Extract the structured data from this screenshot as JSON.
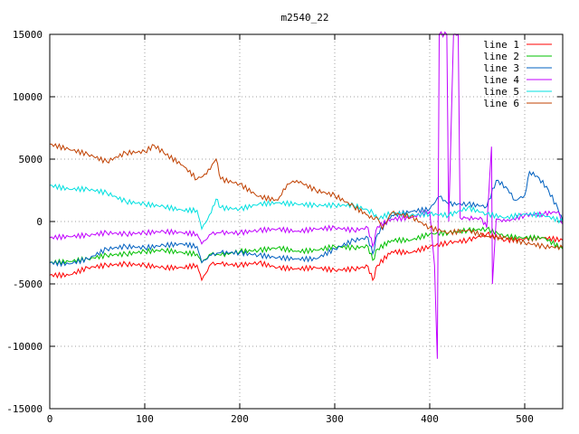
{
  "chart_data": {
    "type": "line",
    "title": "m2540_22",
    "xlabel": "",
    "ylabel": "",
    "xlim": [
      0,
      540
    ],
    "ylim": [
      -15000,
      15000
    ],
    "xticks": [
      0,
      100,
      200,
      300,
      400,
      500
    ],
    "yticks": [
      -15000,
      -10000,
      -5000,
      0,
      5000,
      10000,
      15000
    ],
    "grid": true,
    "legend_position": "top-right",
    "series": [
      {
        "name": "line 1",
        "color": "#ff0000",
        "points": [
          [
            0,
            -4300
          ],
          [
            20,
            -4300
          ],
          [
            40,
            -3700
          ],
          [
            60,
            -3500
          ],
          [
            80,
            -3400
          ],
          [
            100,
            -3500
          ],
          [
            120,
            -3700
          ],
          [
            140,
            -3700
          ],
          [
            155,
            -3500
          ],
          [
            160,
            -4700
          ],
          [
            170,
            -3400
          ],
          [
            180,
            -3400
          ],
          [
            200,
            -3500
          ],
          [
            220,
            -3300
          ],
          [
            240,
            -3700
          ],
          [
            260,
            -3800
          ],
          [
            280,
            -3700
          ],
          [
            300,
            -3900
          ],
          [
            320,
            -3800
          ],
          [
            335,
            -3600
          ],
          [
            340,
            -4700
          ],
          [
            345,
            -3500
          ],
          [
            360,
            -2400
          ],
          [
            380,
            -2500
          ],
          [
            400,
            -2000
          ],
          [
            420,
            -1700
          ],
          [
            440,
            -1500
          ],
          [
            460,
            -1000
          ],
          [
            480,
            -1500
          ],
          [
            500,
            -1400
          ],
          [
            520,
            -1300
          ],
          [
            540,
            -1500
          ]
        ]
      },
      {
        "name": "line 2",
        "color": "#00c000",
        "points": [
          [
            0,
            -3300
          ],
          [
            20,
            -3200
          ],
          [
            40,
            -3000
          ],
          [
            60,
            -2700
          ],
          [
            80,
            -2600
          ],
          [
            100,
            -2400
          ],
          [
            120,
            -2300
          ],
          [
            140,
            -2500
          ],
          [
            155,
            -2600
          ],
          [
            160,
            -3300
          ],
          [
            170,
            -2600
          ],
          [
            180,
            -2700
          ],
          [
            200,
            -2400
          ],
          [
            220,
            -2300
          ],
          [
            240,
            -2100
          ],
          [
            260,
            -2400
          ],
          [
            280,
            -2300
          ],
          [
            300,
            -2000
          ],
          [
            320,
            -2100
          ],
          [
            335,
            -2000
          ],
          [
            340,
            -3100
          ],
          [
            345,
            -2200
          ],
          [
            360,
            -1500
          ],
          [
            380,
            -1500
          ],
          [
            400,
            -1000
          ],
          [
            420,
            -900
          ],
          [
            440,
            -700
          ],
          [
            460,
            -600
          ],
          [
            480,
            -1200
          ],
          [
            500,
            -1300
          ],
          [
            520,
            -1300
          ],
          [
            540,
            -2200
          ]
        ]
      },
      {
        "name": "line 3",
        "color": "#0060c0",
        "points": [
          [
            0,
            -3300
          ],
          [
            20,
            -3400
          ],
          [
            40,
            -3000
          ],
          [
            60,
            -2200
          ],
          [
            80,
            -2000
          ],
          [
            100,
            -2100
          ],
          [
            120,
            -1900
          ],
          [
            140,
            -1800
          ],
          [
            155,
            -2000
          ],
          [
            160,
            -3300
          ],
          [
            170,
            -2700
          ],
          [
            180,
            -2500
          ],
          [
            200,
            -2500
          ],
          [
            220,
            -2700
          ],
          [
            240,
            -2900
          ],
          [
            260,
            -3000
          ],
          [
            280,
            -3000
          ],
          [
            300,
            -2200
          ],
          [
            320,
            -1500
          ],
          [
            335,
            -1300
          ],
          [
            340,
            -2600
          ],
          [
            345,
            -1000
          ],
          [
            360,
            500
          ],
          [
            380,
            800
          ],
          [
            400,
            1000
          ],
          [
            410,
            2000
          ],
          [
            420,
            1400
          ],
          [
            440,
            1400
          ],
          [
            460,
            1200
          ],
          [
            470,
            3300
          ],
          [
            480,
            2800
          ],
          [
            490,
            1700
          ],
          [
            500,
            2100
          ],
          [
            505,
            4000
          ],
          [
            515,
            3500
          ],
          [
            525,
            2500
          ],
          [
            535,
            1000
          ],
          [
            540,
            0
          ]
        ]
      },
      {
        "name": "line 4",
        "color": "#c000ff",
        "points": [
          [
            0,
            -1300
          ],
          [
            20,
            -1200
          ],
          [
            40,
            -1100
          ],
          [
            60,
            -900
          ],
          [
            80,
            -1000
          ],
          [
            100,
            -900
          ],
          [
            120,
            -800
          ],
          [
            140,
            -900
          ],
          [
            155,
            -1000
          ],
          [
            160,
            -1800
          ],
          [
            170,
            -1000
          ],
          [
            180,
            -900
          ],
          [
            200,
            -900
          ],
          [
            220,
            -700
          ],
          [
            240,
            -600
          ],
          [
            260,
            -800
          ],
          [
            280,
            -600
          ],
          [
            300,
            -500
          ],
          [
            320,
            -700
          ],
          [
            335,
            -500
          ],
          [
            340,
            -2000
          ],
          [
            345,
            -400
          ],
          [
            360,
            200
          ],
          [
            380,
            300
          ],
          [
            400,
            800
          ],
          [
            405,
            -3500
          ],
          [
            408,
            -11000
          ],
          [
            410,
            15000
          ],
          [
            418,
            15000
          ],
          [
            420,
            0
          ],
          [
            425,
            15000
          ],
          [
            430,
            15000
          ],
          [
            432,
            300
          ],
          [
            440,
            300
          ],
          [
            455,
            200
          ],
          [
            460,
            -500
          ],
          [
            465,
            6000
          ],
          [
            466,
            -5000
          ],
          [
            470,
            200
          ],
          [
            480,
            0
          ],
          [
            500,
            500
          ],
          [
            520,
            600
          ],
          [
            535,
            800
          ],
          [
            540,
            -200
          ]
        ]
      },
      {
        "name": "line 5",
        "color": "#00e0e0",
        "points": [
          [
            0,
            2900
          ],
          [
            20,
            2600
          ],
          [
            40,
            2600
          ],
          [
            60,
            2300
          ],
          [
            80,
            1600
          ],
          [
            100,
            1400
          ],
          [
            120,
            1200
          ],
          [
            140,
            900
          ],
          [
            155,
            900
          ],
          [
            160,
            -600
          ],
          [
            170,
            700
          ],
          [
            175,
            1800
          ],
          [
            180,
            1100
          ],
          [
            200,
            1000
          ],
          [
            220,
            1400
          ],
          [
            240,
            1500
          ],
          [
            260,
            1400
          ],
          [
            280,
            1300
          ],
          [
            300,
            1300
          ],
          [
            320,
            1300
          ],
          [
            335,
            900
          ],
          [
            340,
            700
          ],
          [
            345,
            200
          ],
          [
            360,
            700
          ],
          [
            380,
            500
          ],
          [
            400,
            600
          ],
          [
            420,
            500
          ],
          [
            440,
            1100
          ],
          [
            460,
            600
          ],
          [
            480,
            300
          ],
          [
            500,
            600
          ],
          [
            520,
            500
          ],
          [
            540,
            0
          ]
        ]
      },
      {
        "name": "line 6",
        "color": "#c04000",
        "points": [
          [
            0,
            6200
          ],
          [
            20,
            5800
          ],
          [
            40,
            5400
          ],
          [
            60,
            4800
          ],
          [
            80,
            5500
          ],
          [
            100,
            5600
          ],
          [
            110,
            6100
          ],
          [
            120,
            5500
          ],
          [
            140,
            4500
          ],
          [
            155,
            3400
          ],
          [
            165,
            3800
          ],
          [
            175,
            5000
          ],
          [
            180,
            3400
          ],
          [
            200,
            3000
          ],
          [
            220,
            2000
          ],
          [
            240,
            1700
          ],
          [
            250,
            3000
          ],
          [
            260,
            3300
          ],
          [
            280,
            2500
          ],
          [
            300,
            2100
          ],
          [
            320,
            1200
          ],
          [
            335,
            500
          ],
          [
            340,
            200
          ],
          [
            345,
            300
          ],
          [
            350,
            -600
          ],
          [
            360,
            700
          ],
          [
            380,
            400
          ],
          [
            400,
            -500
          ],
          [
            420,
            -900
          ],
          [
            440,
            -700
          ],
          [
            460,
            -1200
          ],
          [
            480,
            -1300
          ],
          [
            500,
            -1700
          ],
          [
            520,
            -2000
          ],
          [
            540,
            -2100
          ]
        ]
      }
    ]
  }
}
